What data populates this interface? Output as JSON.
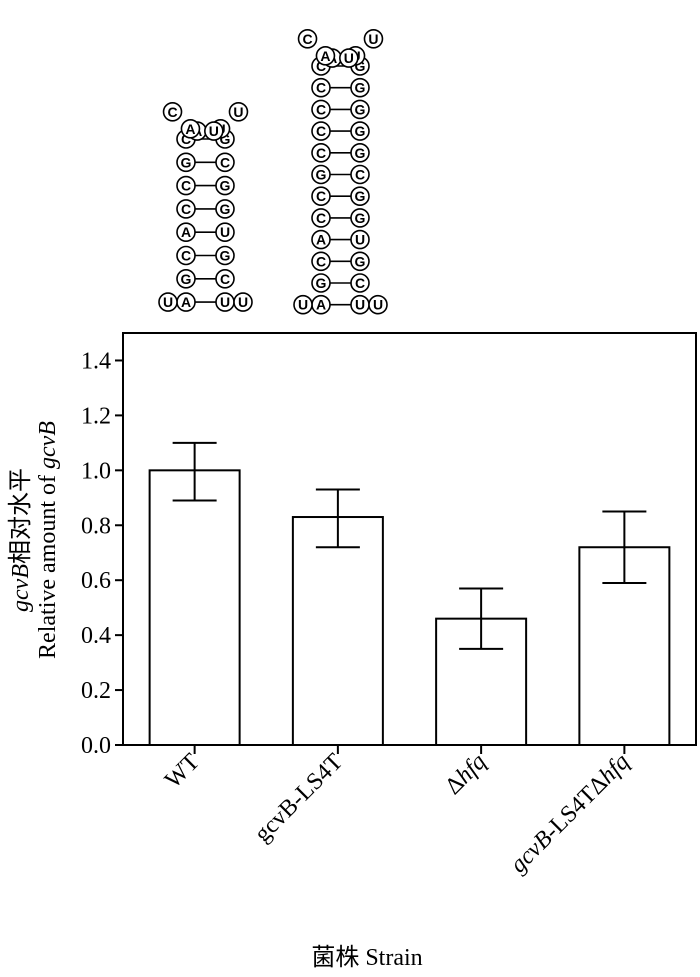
{
  "hairpins": [
    {
      "loop_left": [
        "C",
        "A",
        "U"
      ],
      "loop_right": [
        "A",
        "U",
        "U"
      ],
      "stem": [
        [
          "C",
          "G"
        ],
        [
          "G",
          "C"
        ],
        [
          "C",
          "G"
        ],
        [
          "C",
          "G"
        ],
        [
          "A",
          "U"
        ],
        [
          "C",
          "G"
        ],
        [
          "G",
          "C"
        ],
        [
          "A",
          "U"
        ]
      ],
      "tail_left": "U",
      "tail_right": "U"
    },
    {
      "loop_left": [
        "C",
        "A",
        "U"
      ],
      "loop_right": [
        "A",
        "U",
        "U"
      ],
      "stem": [
        [
          "C",
          "G"
        ],
        [
          "C",
          "G"
        ],
        [
          "C",
          "G"
        ],
        [
          "C",
          "G"
        ],
        [
          "C",
          "G"
        ],
        [
          "G",
          "C"
        ],
        [
          "C",
          "G"
        ],
        [
          "C",
          "G"
        ],
        [
          "A",
          "U"
        ],
        [
          "C",
          "G"
        ],
        [
          "G",
          "C"
        ],
        [
          "A",
          "U"
        ]
      ],
      "tail_left": "U",
      "tail_right": "U"
    }
  ],
  "chart_data": {
    "type": "bar",
    "categories": [
      [
        {
          "t": "WT",
          "i": false
        }
      ],
      [
        {
          "t": "gcvB-LS4T",
          "i": false
        }
      ],
      [
        {
          "t": "Δ",
          "i": false
        },
        {
          "t": "hfq",
          "i": true
        }
      ],
      [
        {
          "t": "gcvB",
          "i": true
        },
        {
          "t": "-LS4T",
          "i": false
        },
        {
          "t": "Δ",
          "i": false
        },
        {
          "t": "hfq",
          "i": true
        }
      ]
    ],
    "values": [
      1.0,
      0.83,
      0.46,
      0.72
    ],
    "error_upper": [
      1.1,
      0.93,
      0.57,
      0.85
    ],
    "error_lower": [
      0.89,
      0.72,
      0.35,
      0.59
    ],
    "ylim": [
      0,
      1.5
    ],
    "yticks": [
      "0.0",
      "0.2",
      "0.4",
      "0.6",
      "0.8",
      "1.0",
      "1.2",
      "1.4"
    ],
    "ylabel_line1": [
      {
        "t": "gcvB",
        "i": true
      },
      {
        "t": "相对水平",
        "i": false
      }
    ],
    "ylabel_line2": [
      {
        "t": "Relative amount of ",
        "i": false
      },
      {
        "t": "gcvB",
        "i": true
      }
    ],
    "xlabel": "菌株  Strain",
    "bar_fill": "#ffffff",
    "bar_stroke": "#000000"
  }
}
